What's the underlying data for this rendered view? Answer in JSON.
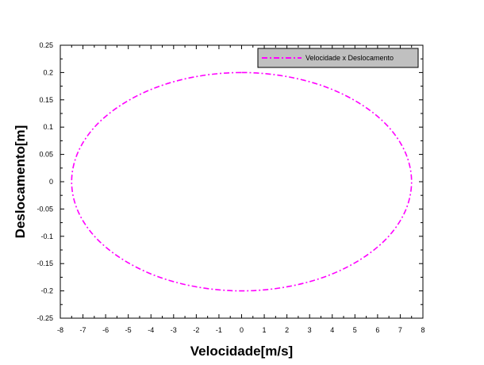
{
  "chart_data": {
    "type": "line",
    "title": "",
    "xlabel": "Velocidade[m/s]",
    "ylabel": "Deslocamento[m]",
    "xlim": [
      -8,
      8
    ],
    "ylim": [
      -0.25,
      0.25
    ],
    "x_ticks": [
      -8,
      -7,
      -6,
      -5,
      -4,
      -3,
      -2,
      -1,
      0,
      1,
      2,
      3,
      4,
      5,
      6,
      7,
      8
    ],
    "x_tick_labels": [
      "-8",
      "-7",
      "-6",
      "-5",
      "-4",
      "-3",
      "-2",
      "-1",
      "0",
      "1",
      "2",
      "3",
      "4",
      "5",
      "6",
      "7",
      "8"
    ],
    "y_ticks": [
      -0.25,
      -0.2,
      -0.15,
      -0.1,
      -0.05,
      0,
      0.05,
      0.1,
      0.15,
      0.2,
      0.25
    ],
    "y_tick_labels": [
      "-0.25",
      "-0.2",
      "-0.15",
      "-0.1",
      "-0.05",
      "0",
      "0.05",
      "0.1",
      "0.15",
      "0.2",
      "0.25"
    ],
    "grid": false,
    "legend_position": "top-right",
    "series": [
      {
        "name": "Velocidade x Deslocamento",
        "color": "#ff00ff",
        "line_style": "dash-dot",
        "x": [
          0,
          1.94,
          3.75,
          5.3,
          6.49,
          7.24,
          7.5,
          7.24,
          6.49,
          5.3,
          3.75,
          1.94,
          0,
          -1.94,
          -3.75,
          -5.3,
          -6.49,
          -7.24,
          -7.5,
          -7.24,
          -6.49,
          -5.3,
          -3.75,
          -1.94,
          0
        ],
        "y": [
          0.2,
          0.193,
          0.173,
          0.141,
          0.1,
          0.052,
          0,
          -0.052,
          -0.1,
          -0.141,
          -0.173,
          -0.193,
          -0.2,
          -0.193,
          -0.173,
          -0.141,
          -0.1,
          -0.052,
          0,
          0.052,
          0.1,
          0.141,
          0.173,
          0.193,
          0.2
        ]
      }
    ]
  },
  "colors": {
    "series": "#ff00ff",
    "axis": "#000000",
    "legend_bg": "#c0c0c0"
  }
}
